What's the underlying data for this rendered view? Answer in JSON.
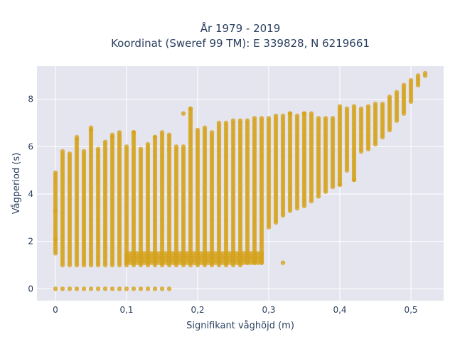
{
  "chart_data": {
    "type": "scatter",
    "title_line1": "År 1979 - 2019",
    "title_line2": "Koordinat (Sweref 99 TM): E 339828, N 6219661",
    "xlabel": "Signifikant våghöjd (m)",
    "ylabel": "Vågperiod (s)",
    "xlim": [
      -0.026,
      0.546
    ],
    "ylim": [
      -0.5,
      9.4
    ],
    "x_ticks": [
      0,
      0.1,
      0.2,
      0.3,
      0.4,
      0.5
    ],
    "x_tick_labels": [
      "0",
      "0,1",
      "0,2",
      "0,3",
      "0,4",
      "0,5"
    ],
    "y_ticks": [
      0,
      2,
      4,
      6,
      8
    ],
    "y_tick_labels": [
      "0",
      "2",
      "4",
      "6",
      "8"
    ],
    "grid": true,
    "marker_color": "#D4A21C",
    "plot_background": "#E5E5EF",
    "columns": [
      {
        "x": 0.0,
        "y_min": 1.5,
        "y_max": 4.9,
        "has_zero": true
      },
      {
        "x": 0.01,
        "y_min": 1.0,
        "y_max": 5.8,
        "has_zero": true
      },
      {
        "x": 0.02,
        "y_min": 1.0,
        "y_max": 5.7,
        "has_zero": true
      },
      {
        "x": 0.03,
        "y_min": 1.0,
        "y_max": 6.4,
        "has_zero": true
      },
      {
        "x": 0.04,
        "y_min": 1.0,
        "y_max": 5.8,
        "has_zero": true
      },
      {
        "x": 0.05,
        "y_min": 1.0,
        "y_max": 6.8,
        "has_zero": true
      },
      {
        "x": 0.06,
        "y_min": 1.0,
        "y_max": 5.9,
        "has_zero": true
      },
      {
        "x": 0.07,
        "y_min": 1.0,
        "y_max": 6.2,
        "has_zero": true
      },
      {
        "x": 0.08,
        "y_min": 1.0,
        "y_max": 6.5,
        "has_zero": true
      },
      {
        "x": 0.09,
        "y_min": 1.0,
        "y_max": 6.6,
        "has_zero": true
      },
      {
        "x": 0.1,
        "y_min": 1.0,
        "y_max": 6.0,
        "has_zero": true
      },
      {
        "x": 0.11,
        "y_min": 1.0,
        "y_max": 6.6,
        "has_zero": true
      },
      {
        "x": 0.12,
        "y_min": 1.0,
        "y_max": 5.9,
        "has_zero": true
      },
      {
        "x": 0.13,
        "y_min": 1.0,
        "y_max": 6.1,
        "has_zero": true
      },
      {
        "x": 0.14,
        "y_min": 1.0,
        "y_max": 6.4,
        "has_zero": true
      },
      {
        "x": 0.15,
        "y_min": 1.0,
        "y_max": 6.5,
        "has_zero": true
      },
      {
        "x": 0.16,
        "y_min": 1.0,
        "y_max": 6.5,
        "has_zero": true
      },
      {
        "x": 0.17,
        "y_min": 1.0,
        "y_max": 6.0,
        "has_zero": false
      },
      {
        "x": 0.18,
        "y_min": 1.0,
        "y_max": 6.0,
        "has_zero": false
      },
      {
        "x": 0.19,
        "y_min": 1.0,
        "y_max": 7.6,
        "has_zero": false
      },
      {
        "x": 0.2,
        "y_min": 1.0,
        "y_max": 6.7,
        "has_zero": false
      },
      {
        "x": 0.21,
        "y_min": 1.0,
        "y_max": 6.8,
        "has_zero": false
      },
      {
        "x": 0.22,
        "y_min": 1.0,
        "y_max": 6.6,
        "has_zero": false
      },
      {
        "x": 0.23,
        "y_min": 1.0,
        "y_max": 7.0,
        "has_zero": false
      },
      {
        "x": 0.24,
        "y_min": 1.0,
        "y_max": 7.0,
        "has_zero": false
      },
      {
        "x": 0.25,
        "y_min": 1.0,
        "y_max": 7.1,
        "has_zero": false
      },
      {
        "x": 0.26,
        "y_min": 1.0,
        "y_max": 7.1,
        "has_zero": false
      },
      {
        "x": 0.27,
        "y_min": 1.1,
        "y_max": 7.1,
        "has_zero": false
      },
      {
        "x": 0.28,
        "y_min": 1.1,
        "y_max": 7.2,
        "has_zero": false
      },
      {
        "x": 0.29,
        "y_min": 1.1,
        "y_max": 7.2,
        "has_zero": false
      },
      {
        "x": 0.3,
        "y_min": 2.6,
        "y_max": 7.2,
        "has_zero": false
      },
      {
        "x": 0.31,
        "y_min": 2.8,
        "y_max": 7.3,
        "has_zero": false
      },
      {
        "x": 0.32,
        "y_min": 3.1,
        "y_max": 7.3,
        "has_zero": false
      },
      {
        "x": 0.33,
        "y_min": 3.3,
        "y_max": 7.4,
        "has_zero": false
      },
      {
        "x": 0.34,
        "y_min": 3.4,
        "y_max": 7.3,
        "has_zero": false
      },
      {
        "x": 0.35,
        "y_min": 3.5,
        "y_max": 7.4,
        "has_zero": false
      },
      {
        "x": 0.36,
        "y_min": 3.7,
        "y_max": 7.4,
        "has_zero": false
      },
      {
        "x": 0.37,
        "y_min": 3.9,
        "y_max": 7.2,
        "has_zero": false
      },
      {
        "x": 0.38,
        "y_min": 4.1,
        "y_max": 7.2,
        "has_zero": false
      },
      {
        "x": 0.39,
        "y_min": 4.3,
        "y_max": 7.2,
        "has_zero": false
      },
      {
        "x": 0.4,
        "y_min": 4.4,
        "y_max": 7.7,
        "has_zero": false
      },
      {
        "x": 0.41,
        "y_min": 5.0,
        "y_max": 7.6,
        "has_zero": false
      },
      {
        "x": 0.42,
        "y_min": 4.6,
        "y_max": 7.7,
        "has_zero": false
      },
      {
        "x": 0.43,
        "y_min": 5.8,
        "y_max": 7.6,
        "has_zero": false
      },
      {
        "x": 0.44,
        "y_min": 5.9,
        "y_max": 7.7,
        "has_zero": false
      },
      {
        "x": 0.45,
        "y_min": 6.1,
        "y_max": 7.8,
        "has_zero": false
      },
      {
        "x": 0.46,
        "y_min": 6.4,
        "y_max": 7.8,
        "has_zero": false
      },
      {
        "x": 0.47,
        "y_min": 6.7,
        "y_max": 8.1,
        "has_zero": false
      },
      {
        "x": 0.48,
        "y_min": 7.1,
        "y_max": 8.3,
        "has_zero": false
      },
      {
        "x": 0.49,
        "y_min": 7.4,
        "y_max": 8.6,
        "has_zero": false
      },
      {
        "x": 0.5,
        "y_min": 7.9,
        "y_max": 8.8,
        "has_zero": false
      },
      {
        "x": 0.51,
        "y_min": 8.6,
        "y_max": 9.0,
        "has_zero": false
      },
      {
        "x": 0.52,
        "y_min": 9.0,
        "y_max": 9.1,
        "has_zero": false
      }
    ],
    "sparse_band": {
      "x_from": 0.1,
      "x_to": 0.29,
      "y_min": 1.1,
      "y_max": 1.5
    },
    "outliers": [
      {
        "x": 0.0,
        "y": 3.3
      },
      {
        "x": 0.0,
        "y": 2.1
      },
      {
        "x": 0.03,
        "y": 6.3
      },
      {
        "x": 0.05,
        "y": 6.7
      },
      {
        "x": 0.08,
        "y": 6.4
      },
      {
        "x": 0.11,
        "y": 6.6
      },
      {
        "x": 0.14,
        "y": 6.4
      },
      {
        "x": 0.15,
        "y": 6.6
      },
      {
        "x": 0.18,
        "y": 7.4
      },
      {
        "x": 0.19,
        "y": 7.6
      },
      {
        "x": 0.32,
        "y": 1.1
      },
      {
        "x": 0.33,
        "y": 7.4
      },
      {
        "x": 0.35,
        "y": 7.4
      },
      {
        "x": 0.4,
        "y": 4.4
      },
      {
        "x": 0.42,
        "y": 4.6
      }
    ]
  }
}
